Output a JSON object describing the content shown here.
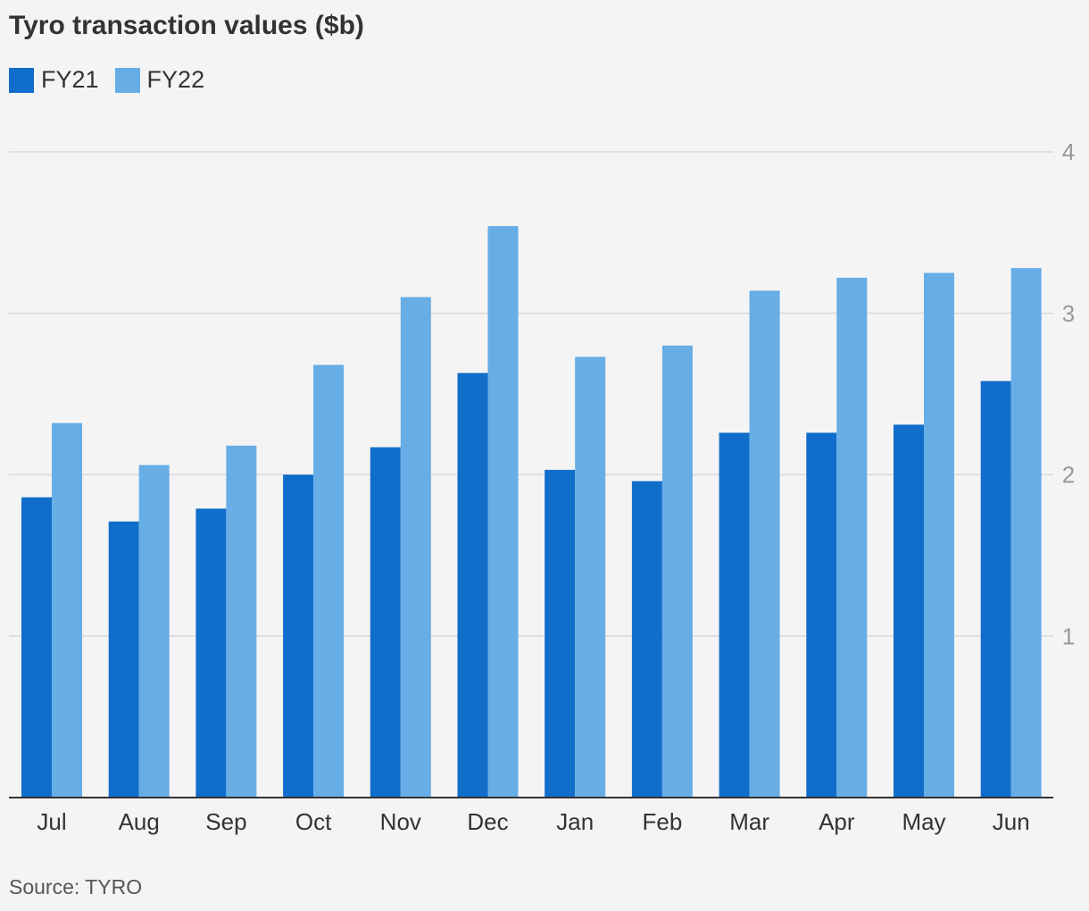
{
  "chart_data": {
    "type": "bar",
    "title": "Tyro transaction values ($b)",
    "xlabel": "",
    "ylabel": "",
    "ylim": [
      0,
      4
    ],
    "yticks": [
      1,
      2,
      3,
      4
    ],
    "grid": true,
    "legend_position": "top-left",
    "categories": [
      "Jul",
      "Aug",
      "Sep",
      "Oct",
      "Nov",
      "Dec",
      "Jan",
      "Feb",
      "Mar",
      "Apr",
      "May",
      "Jun"
    ],
    "series": [
      {
        "name": "FY21",
        "color": "#116dca",
        "values": [
          1.86,
          1.71,
          1.79,
          2.0,
          2.17,
          2.63,
          2.03,
          1.96,
          2.26,
          2.26,
          2.31,
          2.58
        ]
      },
      {
        "name": "FY22",
        "color": "#67ade6",
        "values": [
          2.32,
          2.06,
          2.18,
          2.68,
          3.1,
          3.54,
          2.73,
          2.8,
          3.14,
          3.22,
          3.25,
          3.28
        ]
      }
    ]
  },
  "source": "Source: TYRO"
}
